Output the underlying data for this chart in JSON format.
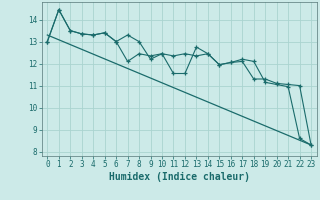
{
  "xlabel": "Humidex (Indice chaleur)",
  "background_color": "#cceae8",
  "grid_color": "#aad4d0",
  "line_color": "#1a6b6b",
  "xlim": [
    -0.5,
    23.5
  ],
  "ylim": [
    7.8,
    14.8
  ],
  "yticks": [
    8,
    9,
    10,
    11,
    12,
    13,
    14
  ],
  "xticks": [
    0,
    1,
    2,
    3,
    4,
    5,
    6,
    7,
    8,
    9,
    10,
    11,
    12,
    13,
    14,
    15,
    16,
    17,
    18,
    19,
    20,
    21,
    22,
    23
  ],
  "line1_x": [
    0,
    1,
    2,
    3,
    4,
    5,
    6,
    7,
    8,
    9,
    10,
    11,
    12,
    13,
    14,
    15,
    16,
    17,
    18,
    19,
    20,
    21,
    22,
    23
  ],
  "line1_y": [
    13.0,
    14.45,
    13.5,
    13.35,
    13.3,
    13.4,
    13.0,
    12.1,
    12.45,
    12.35,
    12.45,
    11.55,
    11.55,
    12.75,
    12.45,
    11.95,
    12.05,
    12.2,
    12.1,
    11.15,
    11.05,
    10.95,
    8.6,
    8.3
  ],
  "line2_x": [
    0,
    1,
    2,
    3,
    4,
    5,
    6,
    7,
    8,
    9,
    10,
    11,
    12,
    13,
    14,
    15,
    16,
    17,
    18,
    19,
    20,
    21,
    22,
    23
  ],
  "line2_y": [
    13.0,
    14.45,
    13.5,
    13.35,
    13.3,
    13.4,
    13.0,
    13.3,
    13.0,
    12.2,
    12.45,
    12.35,
    12.45,
    12.35,
    12.45,
    11.95,
    12.05,
    12.1,
    11.3,
    11.3,
    11.1,
    11.05,
    11.0,
    8.3
  ],
  "trend_x": [
    0,
    23
  ],
  "trend_y": [
    13.3,
    8.3
  ]
}
